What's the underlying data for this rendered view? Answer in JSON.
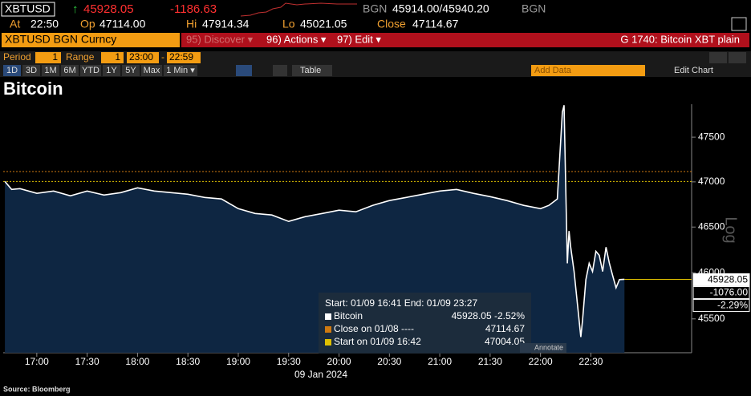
{
  "quote": {
    "ticker": "XBTUSD",
    "arrow": "↑",
    "last": "45928.05",
    "change": "-1186.63",
    "source1": "BGN",
    "bid_ask": "45914.00/45940.20",
    "source2": "BGN",
    "at_label": "At",
    "at": "22:50",
    "op_label": "Op",
    "op": "47114.00",
    "hi_label": "Hi",
    "hi": "47914.34",
    "lo_label": "Lo",
    "lo": "45021.05",
    "close_label": "Close",
    "close": "47114.67"
  },
  "toolbar": {
    "security": "XBTUSD BGN Curncy",
    "discover": "95) Discover ▾",
    "actions": "96) Actions ▾",
    "edit": "97) Edit ▾",
    "page_title": "G 1740: Bitcoin XBT plain",
    "period_label": "Period",
    "period": "1",
    "range_label": "Range",
    "range": "1",
    "range_start": "23:00",
    "range_end": "22:59",
    "buttons": [
      "1D",
      "3D",
      "1M",
      "6M",
      "YTD",
      "1Y",
      "5Y",
      "Max",
      "1 Min ▾"
    ],
    "table": "Table",
    "add_data": "Add Data",
    "edit_chart": "Edit Chart"
  },
  "chart_data": {
    "type": "line",
    "title": "Bitcoin",
    "x": [
      "16:41",
      "16:45",
      "16:50",
      "17:00",
      "17:10",
      "17:20",
      "17:30",
      "17:40",
      "17:50",
      "18:00",
      "18:10",
      "18:20",
      "18:30",
      "18:40",
      "18:50",
      "19:00",
      "19:10",
      "19:20",
      "19:30",
      "19:40",
      "19:50",
      "20:00",
      "20:10",
      "20:20",
      "20:30",
      "20:40",
      "20:50",
      "21:00",
      "21:10",
      "21:20",
      "21:30",
      "21:40",
      "21:50",
      "22:00",
      "22:05",
      "22:10",
      "22:13",
      "22:14",
      "22:15",
      "22:16",
      "22:17",
      "22:18",
      "22:20",
      "22:22",
      "22:24",
      "22:25",
      "22:27",
      "22:29",
      "22:31",
      "22:33",
      "22:35",
      "22:37",
      "22:39",
      "22:41",
      "22:43",
      "22:45",
      "22:47",
      "22:50"
    ],
    "series": [
      {
        "name": "Bitcoin",
        "color": "#ffffff",
        "area_color": "#0e2642",
        "values": [
          47004,
          46916,
          46925,
          46872,
          46898,
          46845,
          46898,
          46854,
          46880,
          46934,
          46898,
          46880,
          46863,
          46827,
          46810,
          46703,
          46650,
          46633,
          46562,
          46615,
          46650,
          46686,
          46668,
          46739,
          46792,
          46827,
          46863,
          46898,
          46916,
          46872,
          46836,
          46792,
          46739,
          46703,
          46739,
          46810,
          47783,
          47860,
          46987,
          46102,
          46456,
          46279,
          46013,
          45659,
          45305,
          45482,
          45925,
          46102,
          46013,
          46234,
          46190,
          46013,
          46279,
          46102,
          45969,
          45836,
          45925,
          45928.05
        ]
      }
    ],
    "reference_lines": [
      {
        "value": 47114.67,
        "color": "#d07a10"
      },
      {
        "value": 47004.05,
        "color": "#e0c000"
      }
    ],
    "xlim": [
      "16:40",
      "23:30"
    ],
    "xticks": [
      "17:00",
      "17:30",
      "18:00",
      "18:30",
      "19:00",
      "19:30",
      "20:00",
      "20:30",
      "21:00",
      "21:30",
      "22:00",
      "22:30"
    ],
    "x_sublabel": "09 Jan 2024",
    "ylim": [
      45137,
      47872
    ],
    "yticks": [
      45500,
      46000,
      46500,
      47000,
      47500
    ],
    "log_scale": true,
    "scale_label": "Log",
    "last_tags": [
      "45928.05",
      "-1076.00",
      "-2.29%"
    ],
    "legend": {
      "header": "Start: 01/09 16:41 End: 01/09 23:27",
      "entries": [
        {
          "name": "Bitcoin",
          "value": "45928.05  -2.52%",
          "color": "#ffffff"
        },
        {
          "name": "Close on 01/08 ----",
          "value": "47114.67",
          "color": "#d07a10"
        },
        {
          "name": "Start on 01/09 16:42",
          "value": "47004.05",
          "color": "#e0c000"
        }
      ],
      "annotate": "Annotate"
    },
    "source": "Source: Bloomberg"
  }
}
